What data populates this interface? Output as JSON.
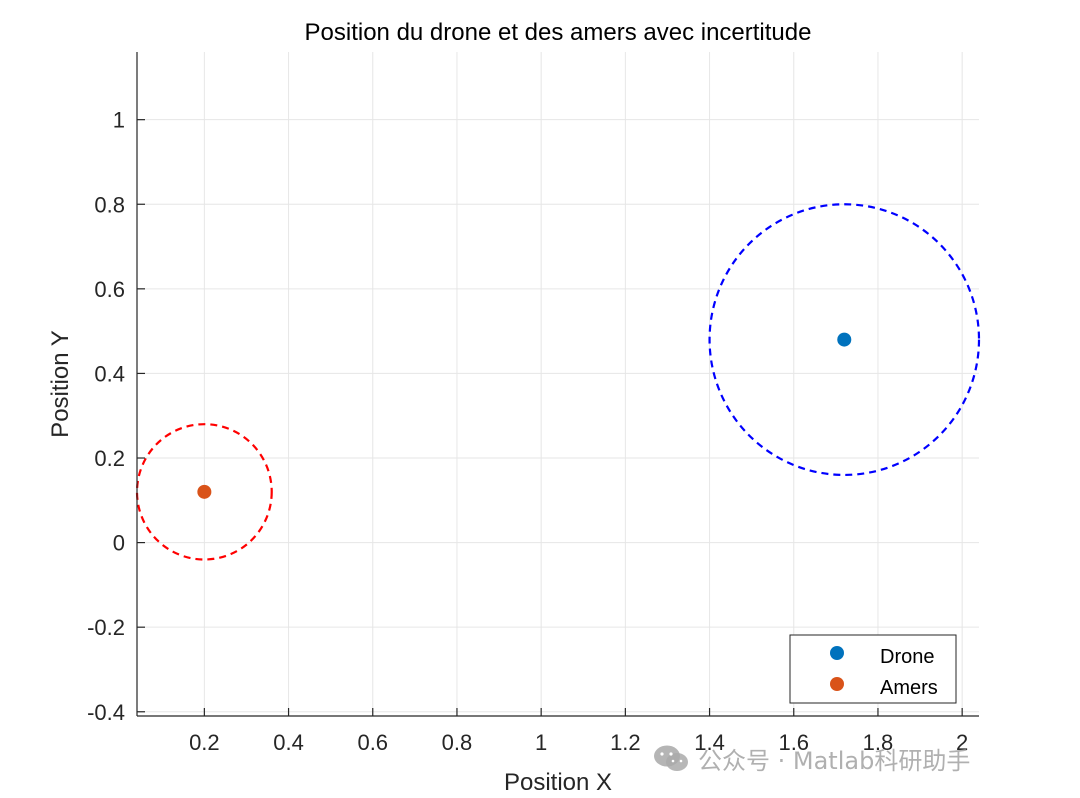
{
  "chart_data": {
    "type": "scatter",
    "title": "Position du drone et des amers avec incertitude",
    "xlabel": "Position X",
    "ylabel": "Position Y",
    "xlim": [
      0.04,
      2.04
    ],
    "ylim": [
      -0.41,
      1.16
    ],
    "xticks": [
      0.2,
      0.4,
      0.6,
      0.8,
      1,
      1.2,
      1.4,
      1.6,
      1.8,
      2
    ],
    "xtick_labels": [
      "0.2",
      "0.4",
      "0.6",
      "0.8",
      "1",
      "1.2",
      "1.4",
      "1.6",
      "1.8",
      "2"
    ],
    "yticks": [
      -0.4,
      -0.2,
      0,
      0.2,
      0.4,
      0.6,
      0.8,
      1
    ],
    "ytick_labels": [
      "-0.4",
      "-0.2",
      "0",
      "0.2",
      "0.4",
      "0.6",
      "0.8",
      "1"
    ],
    "grid": true,
    "series": [
      {
        "name": "Drone",
        "x": 1.72,
        "y": 0.48,
        "color": "#0072BD"
      },
      {
        "name": "Amers",
        "x": 0.2,
        "y": 0.12,
        "color": "#D95319"
      }
    ],
    "uncertainty_circles": [
      {
        "center_x": 1.72,
        "center_y": 0.48,
        "radius": 0.32,
        "color": "#0000FF",
        "style": "dashed"
      },
      {
        "center_x": 0.2,
        "center_y": 0.12,
        "radius": 0.16,
        "color": "#FF0000",
        "style": "dashed"
      }
    ],
    "legend": {
      "position": "bottom-right",
      "entries": [
        "Drone",
        "Amers"
      ]
    }
  },
  "watermark": {
    "text": "公众号 · Matlab科研助手",
    "icon": "wechat-icon"
  }
}
